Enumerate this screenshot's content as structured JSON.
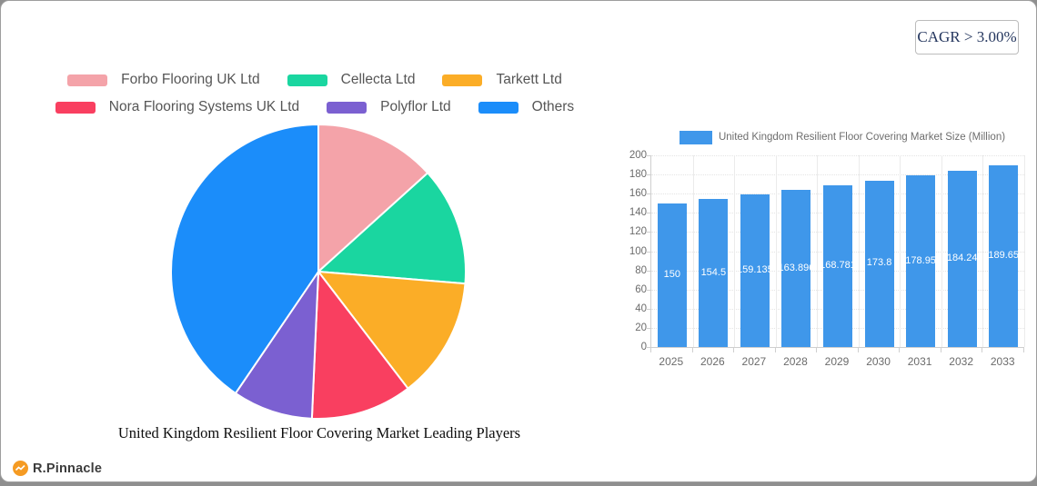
{
  "badge": {
    "label": "CAGR > 3.00%"
  },
  "footer": {
    "logo_text": "R.Pinnacle",
    "logo_color": "#f59b23"
  },
  "chart_data": [
    {
      "type": "pie",
      "title": "United Kingdom Resilient Floor Covering Market Leading Players",
      "legend_position": "top",
      "slices": [
        {
          "label": "Forbo Flooring UK Ltd",
          "value": 13.3,
          "color": "#f4a3a9"
        },
        {
          "label": "Cellecta Ltd",
          "value": 13.0,
          "color": "#1ad6a0"
        },
        {
          "label": "Tarkett Ltd",
          "value": 13.3,
          "color": "#fbad27"
        },
        {
          "label": "Nora Flooring Systems UK Ltd",
          "value": 11.1,
          "color": "#f93f60"
        },
        {
          "label": "Polyflor Ltd",
          "value": 8.8,
          "color": "#7b60d1"
        },
        {
          "label": "Others",
          "value": 40.5,
          "color": "#1b8dfa"
        }
      ]
    },
    {
      "type": "bar",
      "legend_label": "United Kingdom Resilient Floor Covering Market Size (Million)",
      "categories": [
        "2025",
        "2026",
        "2027",
        "2028",
        "2029",
        "2030",
        "2031",
        "2032",
        "2033"
      ],
      "values": [
        150,
        154.5,
        159.135,
        163.896,
        168.781,
        173.8,
        178.95,
        184.24,
        189.65
      ],
      "value_labels": [
        "150",
        "154.5",
        "159.135",
        "163.896",
        "168.781",
        "173.8",
        "178.95",
        "184.24",
        "189.65"
      ],
      "xlabel": "",
      "ylabel": "",
      "ylim": [
        0,
        200
      ],
      "y_ticks": [
        0,
        20,
        40,
        60,
        80,
        100,
        120,
        140,
        160,
        180,
        200
      ],
      "grid": true,
      "legend_position": "top",
      "bar_color": "#3f97ea"
    }
  ]
}
